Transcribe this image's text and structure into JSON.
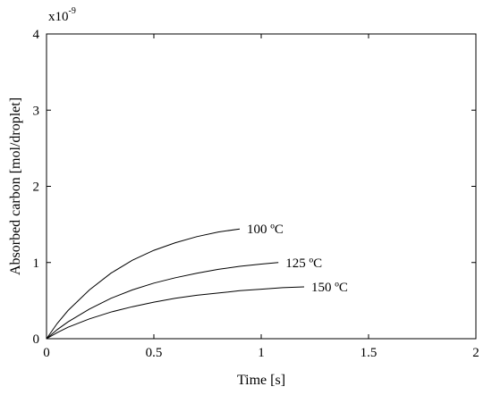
{
  "chart_data": {
    "type": "line",
    "xlabel": "Time [s]",
    "ylabel": "Absorbed carbon [mol/droplet]",
    "xlim": [
      0,
      2
    ],
    "ylim": [
      0,
      4
    ],
    "y_multiplier": {
      "base": "x10",
      "exponent": "-9"
    },
    "x_ticks": [
      0,
      0.5,
      1,
      1.5,
      2
    ],
    "x_tick_labels": [
      "0",
      "0.5",
      "1",
      "1.5",
      "2"
    ],
    "y_ticks": [
      0,
      1,
      2,
      3,
      4
    ],
    "y_tick_labels": [
      "0",
      "1",
      "2",
      "3",
      "4"
    ],
    "grid": false,
    "legend": "none",
    "series": [
      {
        "label": "100 ºC",
        "x": [
          0,
          0.05,
          0.1,
          0.2,
          0.3,
          0.4,
          0.5,
          0.6,
          0.7,
          0.8,
          0.9
        ],
        "y": [
          0,
          0.2,
          0.37,
          0.64,
          0.86,
          1.03,
          1.16,
          1.26,
          1.34,
          1.4,
          1.44
        ]
      },
      {
        "label": "125 ºC",
        "x": [
          0,
          0.05,
          0.1,
          0.2,
          0.3,
          0.4,
          0.5,
          0.6,
          0.7,
          0.8,
          0.9,
          1.0,
          1.08
        ],
        "y": [
          0,
          0.12,
          0.22,
          0.39,
          0.53,
          0.64,
          0.73,
          0.8,
          0.86,
          0.91,
          0.95,
          0.98,
          1.0
        ]
      },
      {
        "label": "150 ºC",
        "x": [
          0,
          0.05,
          0.1,
          0.2,
          0.3,
          0.4,
          0.5,
          0.6,
          0.7,
          0.8,
          0.9,
          1.0,
          1.1,
          1.2
        ],
        "y": [
          0,
          0.08,
          0.15,
          0.26,
          0.35,
          0.42,
          0.48,
          0.53,
          0.57,
          0.6,
          0.63,
          0.65,
          0.67,
          0.68
        ]
      }
    ]
  }
}
